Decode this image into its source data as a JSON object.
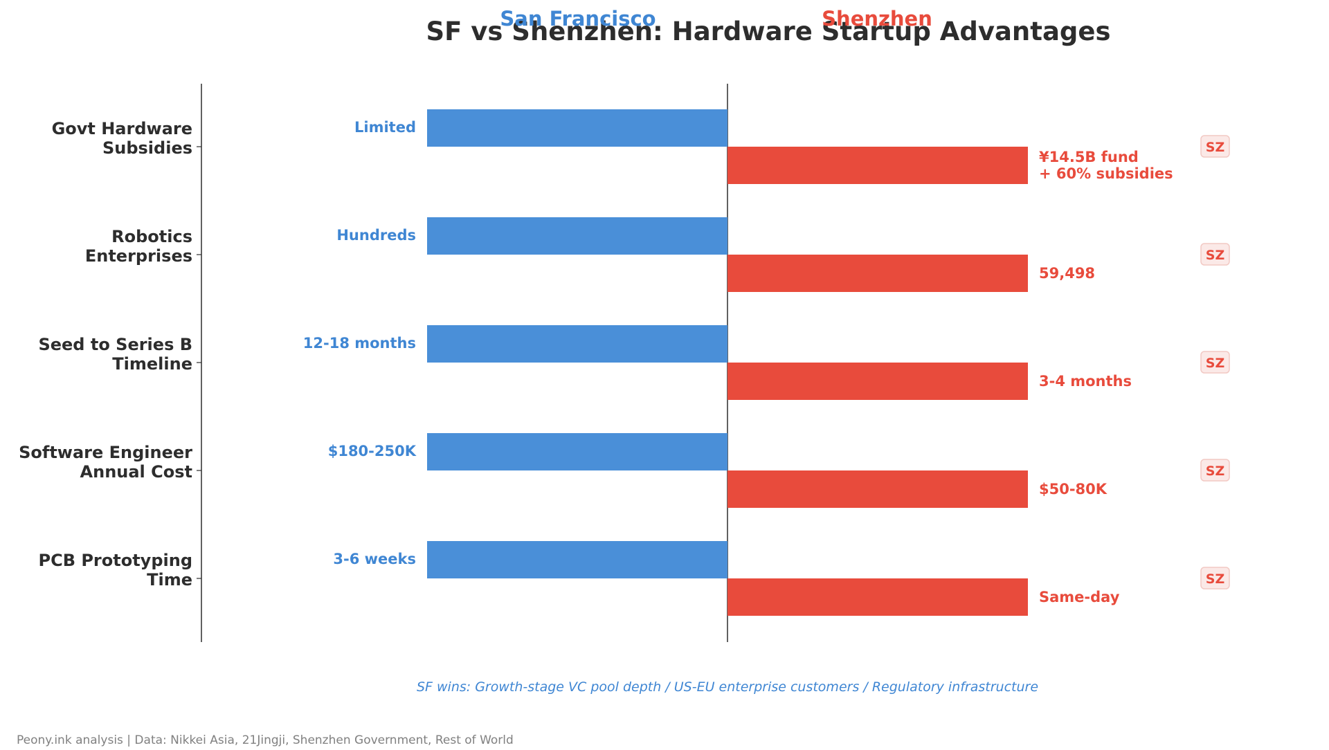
{
  "chart_data": {
    "type": "bar",
    "title": "SF vs Shenzhen: Hardware Startup Advantages",
    "categories": [
      "Govt Hardware\nSubsidies",
      "Robotics\nEnterprises",
      "Seed to Series B\nTimeline",
      "Software Engineer\nAnnual Cost",
      "PCB Prototyping\nTime"
    ],
    "series": [
      {
        "name": "San Francisco",
        "color": "#4a8fd8",
        "values": [
          -1,
          -1,
          -1,
          -1,
          -1
        ],
        "labels": [
          "Limited",
          "Hundreds",
          "12-18 months",
          "$180-250K",
          "3-6 weeks"
        ]
      },
      {
        "name": "Shenzhen",
        "color": "#e84b3c",
        "values": [
          1,
          1,
          1,
          1,
          1
        ],
        "labels": [
          "¥14.5B fund\n+ 60% subsidies",
          "59,498",
          "3-4 months",
          "$50-80K",
          "Same-day"
        ]
      }
    ],
    "winner_badges": [
      "SZ",
      "SZ",
      "SZ",
      "SZ",
      "SZ"
    ],
    "footnote": "SF wins: Growth-stage VC pool depth  /  US-EU enterprise customers  /  Regulatory infrastructure",
    "source": "Peony.ink analysis  |  Data: Nikkei Asia, 21Jingji, Shenzhen Government, Rest of World",
    "colors": {
      "title": "#2d2d2d",
      "badge_bg": "#fbe9e7",
      "badge_border": "#f2c9c4",
      "source": "#808080"
    }
  }
}
